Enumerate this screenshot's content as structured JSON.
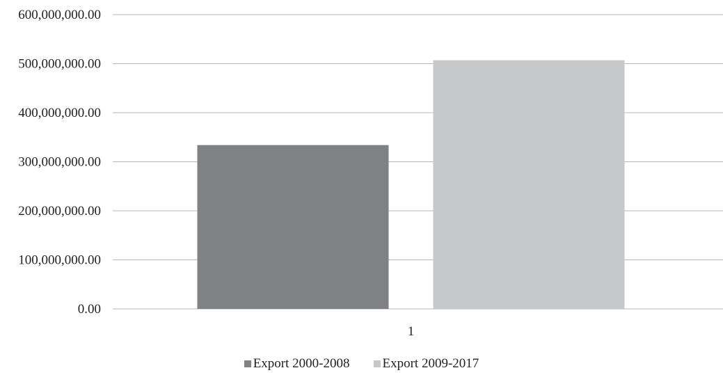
{
  "chart_data": {
    "type": "bar",
    "categories": [
      "1"
    ],
    "series": [
      {
        "name": "Export 2000-2008",
        "values": [
          334000000
        ],
        "color": "#808184"
      },
      {
        "name": "Export 2009-2017",
        "values": [
          507000000
        ],
        "color": "#c7c8ca"
      }
    ],
    "ylim": [
      0,
      600000000
    ],
    "yticks": [
      0,
      100000000,
      200000000,
      300000000,
      400000000,
      500000000,
      600000000
    ],
    "ytick_labels": [
      "0.00",
      "100,000,000.00",
      "200,000,000.00",
      "300,000,000.00",
      "400,000,000.00",
      "500,000,000.00",
      "600,000,000.00"
    ],
    "grid": true,
    "legend_position": "bottom",
    "gridline_color": "#b7b7b7"
  }
}
